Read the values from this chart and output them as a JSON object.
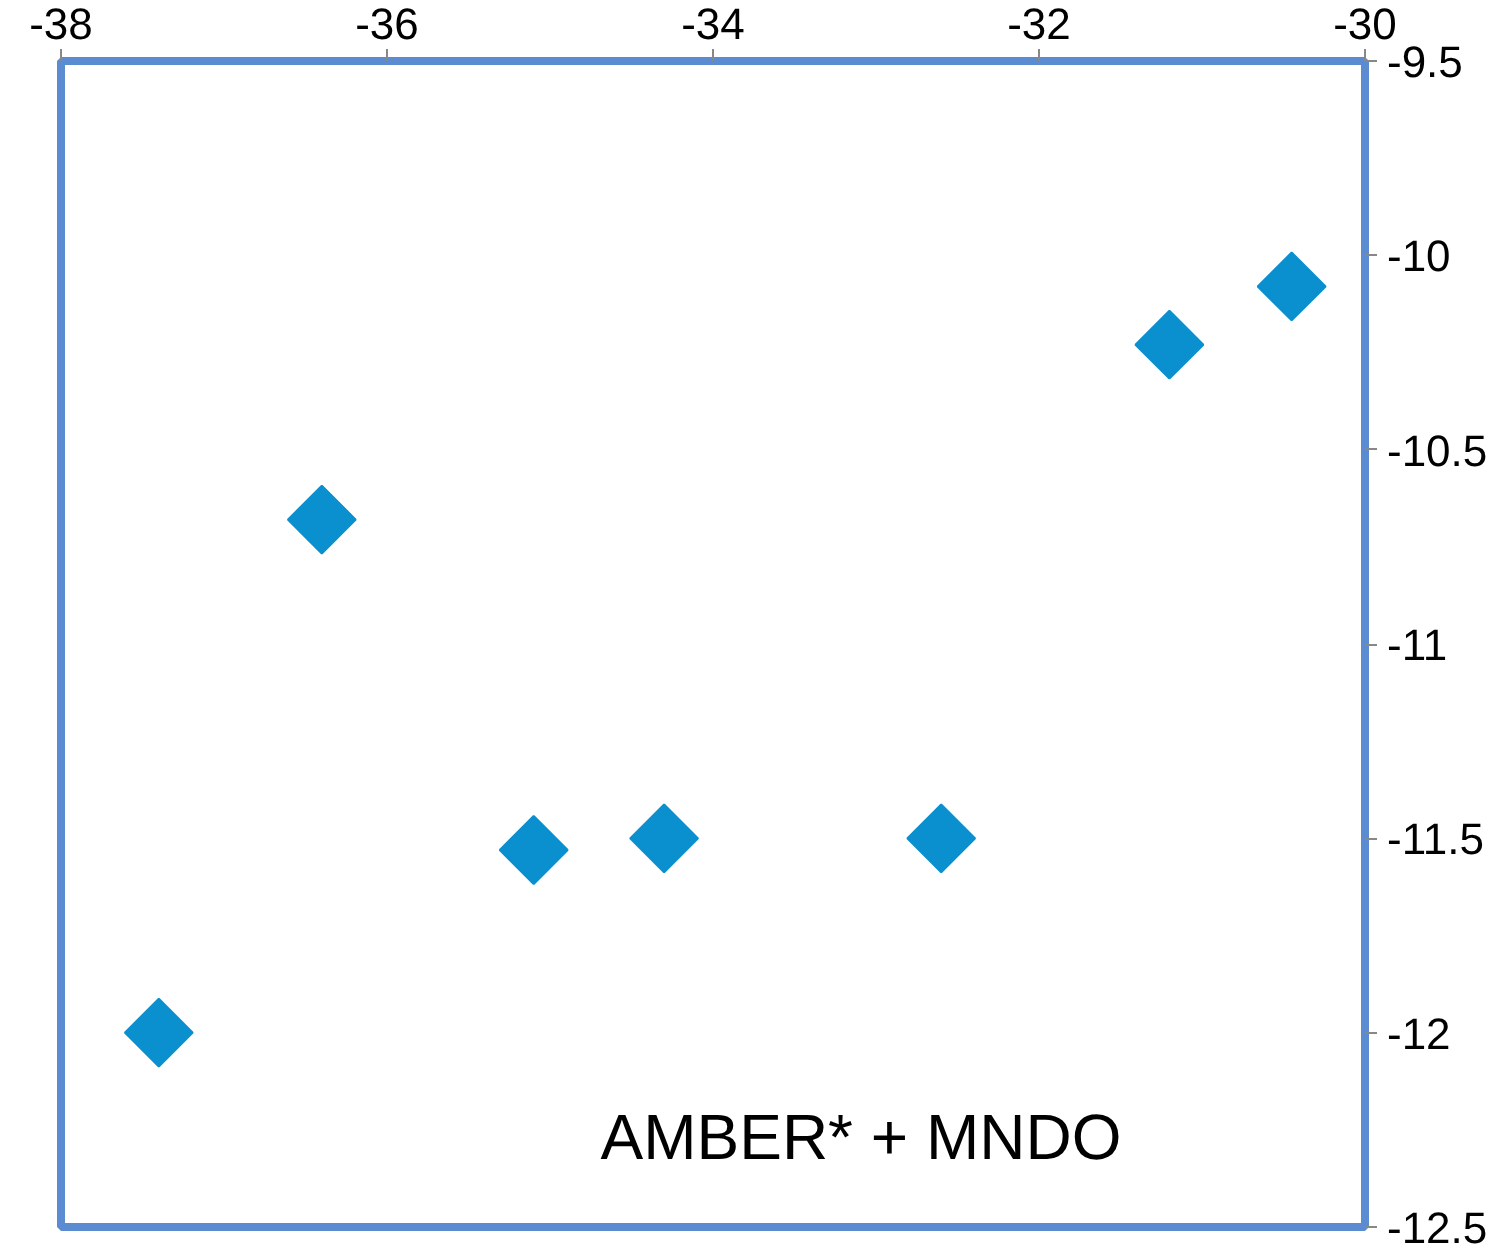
{
  "chart_data": {
    "type": "scatter",
    "marker": "diamond",
    "grid": false,
    "x": [
      -37.4,
      -36.4,
      -35.1,
      -34.3,
      -32.6,
      -31.2,
      -30.45
    ],
    "series": [
      {
        "color": "#0a8fcf",
        "values": [
          -12.0,
          -10.68,
          -11.53,
          -11.5,
          -11.5,
          -10.23,
          -10.08
        ]
      }
    ],
    "xlim": [
      -38,
      -30
    ],
    "xticks": [
      -38,
      -36,
      -34,
      -32,
      -30
    ],
    "ylim": [
      -12.5,
      -9.5
    ],
    "yticks": [
      -12.5,
      -12,
      -11.5,
      -11,
      -10.5,
      -10,
      -9.5
    ],
    "annotations": [
      "AMBER* + MNDO"
    ]
  }
}
